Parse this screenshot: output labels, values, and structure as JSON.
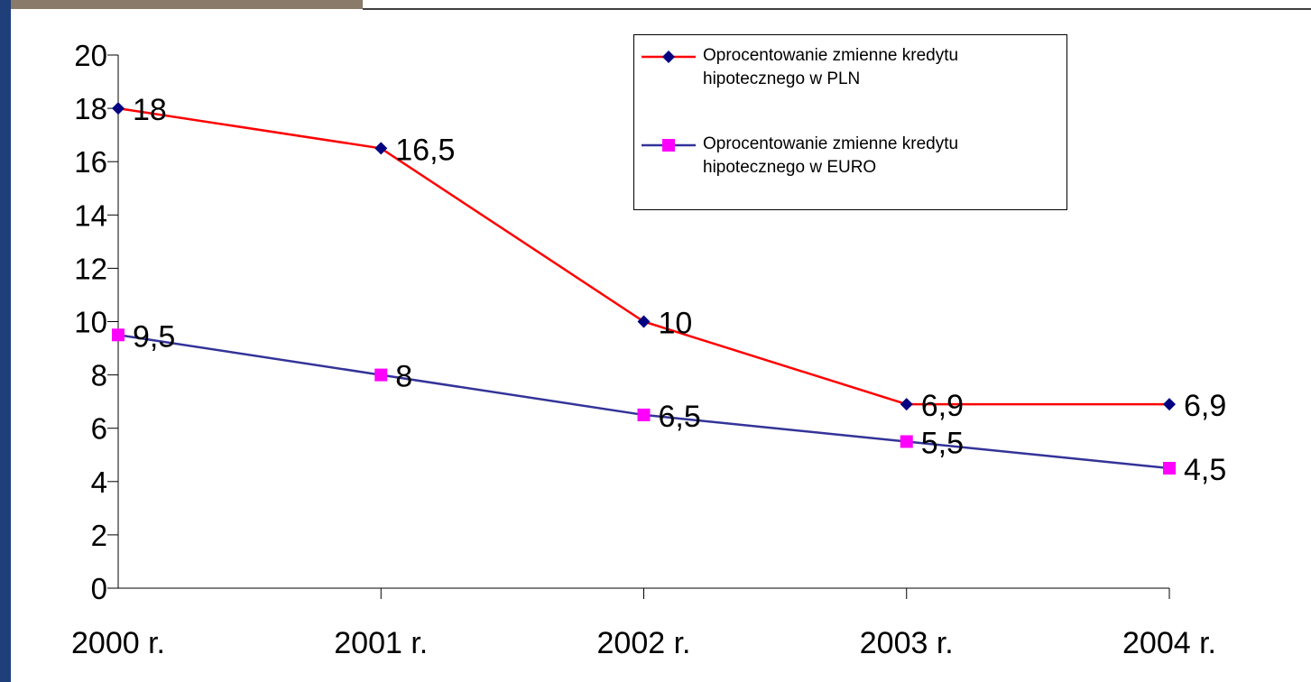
{
  "chart_data": {
    "type": "line",
    "categories": [
      "2000 r.",
      "2001 r.",
      "2002 r.",
      "2003 r.",
      "2004 r."
    ],
    "series": [
      {
        "name": "Oprocentowanie zmienne kredytu hipotecznego w PLN",
        "color": "#ff0000",
        "marker_color": "#000080",
        "marker": "diamond",
        "values": [
          18,
          16.5,
          10,
          6.9,
          6.9
        ],
        "value_labels": [
          "18",
          "16,5",
          "10",
          "6,9",
          "6,9"
        ]
      },
      {
        "name": "Oprocentowanie zmienne kredytu hipotecznego w EURO",
        "color": "#333399",
        "marker_color": "#ff00ff",
        "marker": "square",
        "values": [
          9.5,
          8,
          6.5,
          5.5,
          4.5
        ],
        "value_labels": [
          "9,5",
          "8",
          "6,5",
          "5,5",
          "4,5"
        ]
      }
    ],
    "ylim": [
      0,
      20
    ],
    "yticks": [
      0,
      2,
      4,
      6,
      8,
      10,
      12,
      14,
      16,
      18,
      20
    ],
    "grid": false,
    "legend": "top-right"
  }
}
